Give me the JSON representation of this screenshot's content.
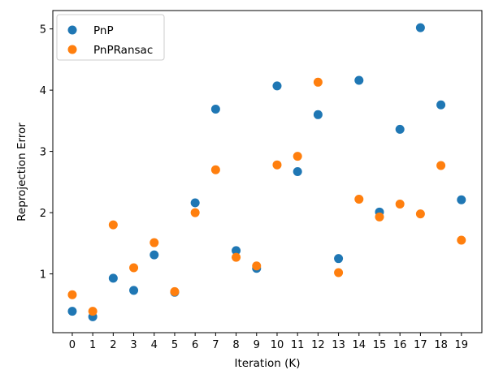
{
  "chart_data": {
    "type": "scatter",
    "title": "",
    "xlabel": "Iteration (K)",
    "ylabel": "Reprojection Error",
    "x_ticks": [
      "0",
      "1",
      "2",
      "3",
      "4",
      "5",
      "6",
      "7",
      "8",
      "9",
      "10",
      "11",
      "12",
      "13",
      "14",
      "15",
      "16",
      "17",
      "18",
      "19"
    ],
    "y_ticks": [
      "1",
      "2",
      "3",
      "4",
      "5"
    ],
    "xlim": [
      -0.95,
      20.0
    ],
    "ylim": [
      0.04,
      5.3
    ],
    "grid": false,
    "legend_position": "upper-left",
    "series": [
      {
        "name": "PnP",
        "color": "#1f77b4",
        "x": [
          0,
          1,
          2,
          3,
          4,
          5,
          6,
          7,
          8,
          9,
          10,
          11,
          12,
          13,
          14,
          15,
          16,
          17,
          18,
          19
        ],
        "y": [
          0.39,
          0.3,
          0.93,
          0.73,
          1.31,
          0.7,
          2.16,
          3.69,
          1.38,
          1.09,
          4.07,
          2.67,
          3.6,
          1.25,
          4.16,
          2.01,
          3.36,
          5.02,
          3.76,
          2.21
        ]
      },
      {
        "name": "PnPRansac",
        "color": "#ff7f0e",
        "x": [
          0,
          1,
          2,
          3,
          4,
          5,
          6,
          7,
          8,
          9,
          10,
          11,
          12,
          13,
          14,
          15,
          16,
          17,
          18,
          19
        ],
        "y": [
          0.66,
          0.39,
          1.8,
          1.1,
          1.51,
          0.71,
          2.0,
          2.7,
          1.27,
          1.13,
          2.78,
          2.92,
          4.13,
          1.02,
          2.22,
          1.93,
          2.14,
          1.98,
          2.77,
          1.55
        ]
      }
    ]
  }
}
